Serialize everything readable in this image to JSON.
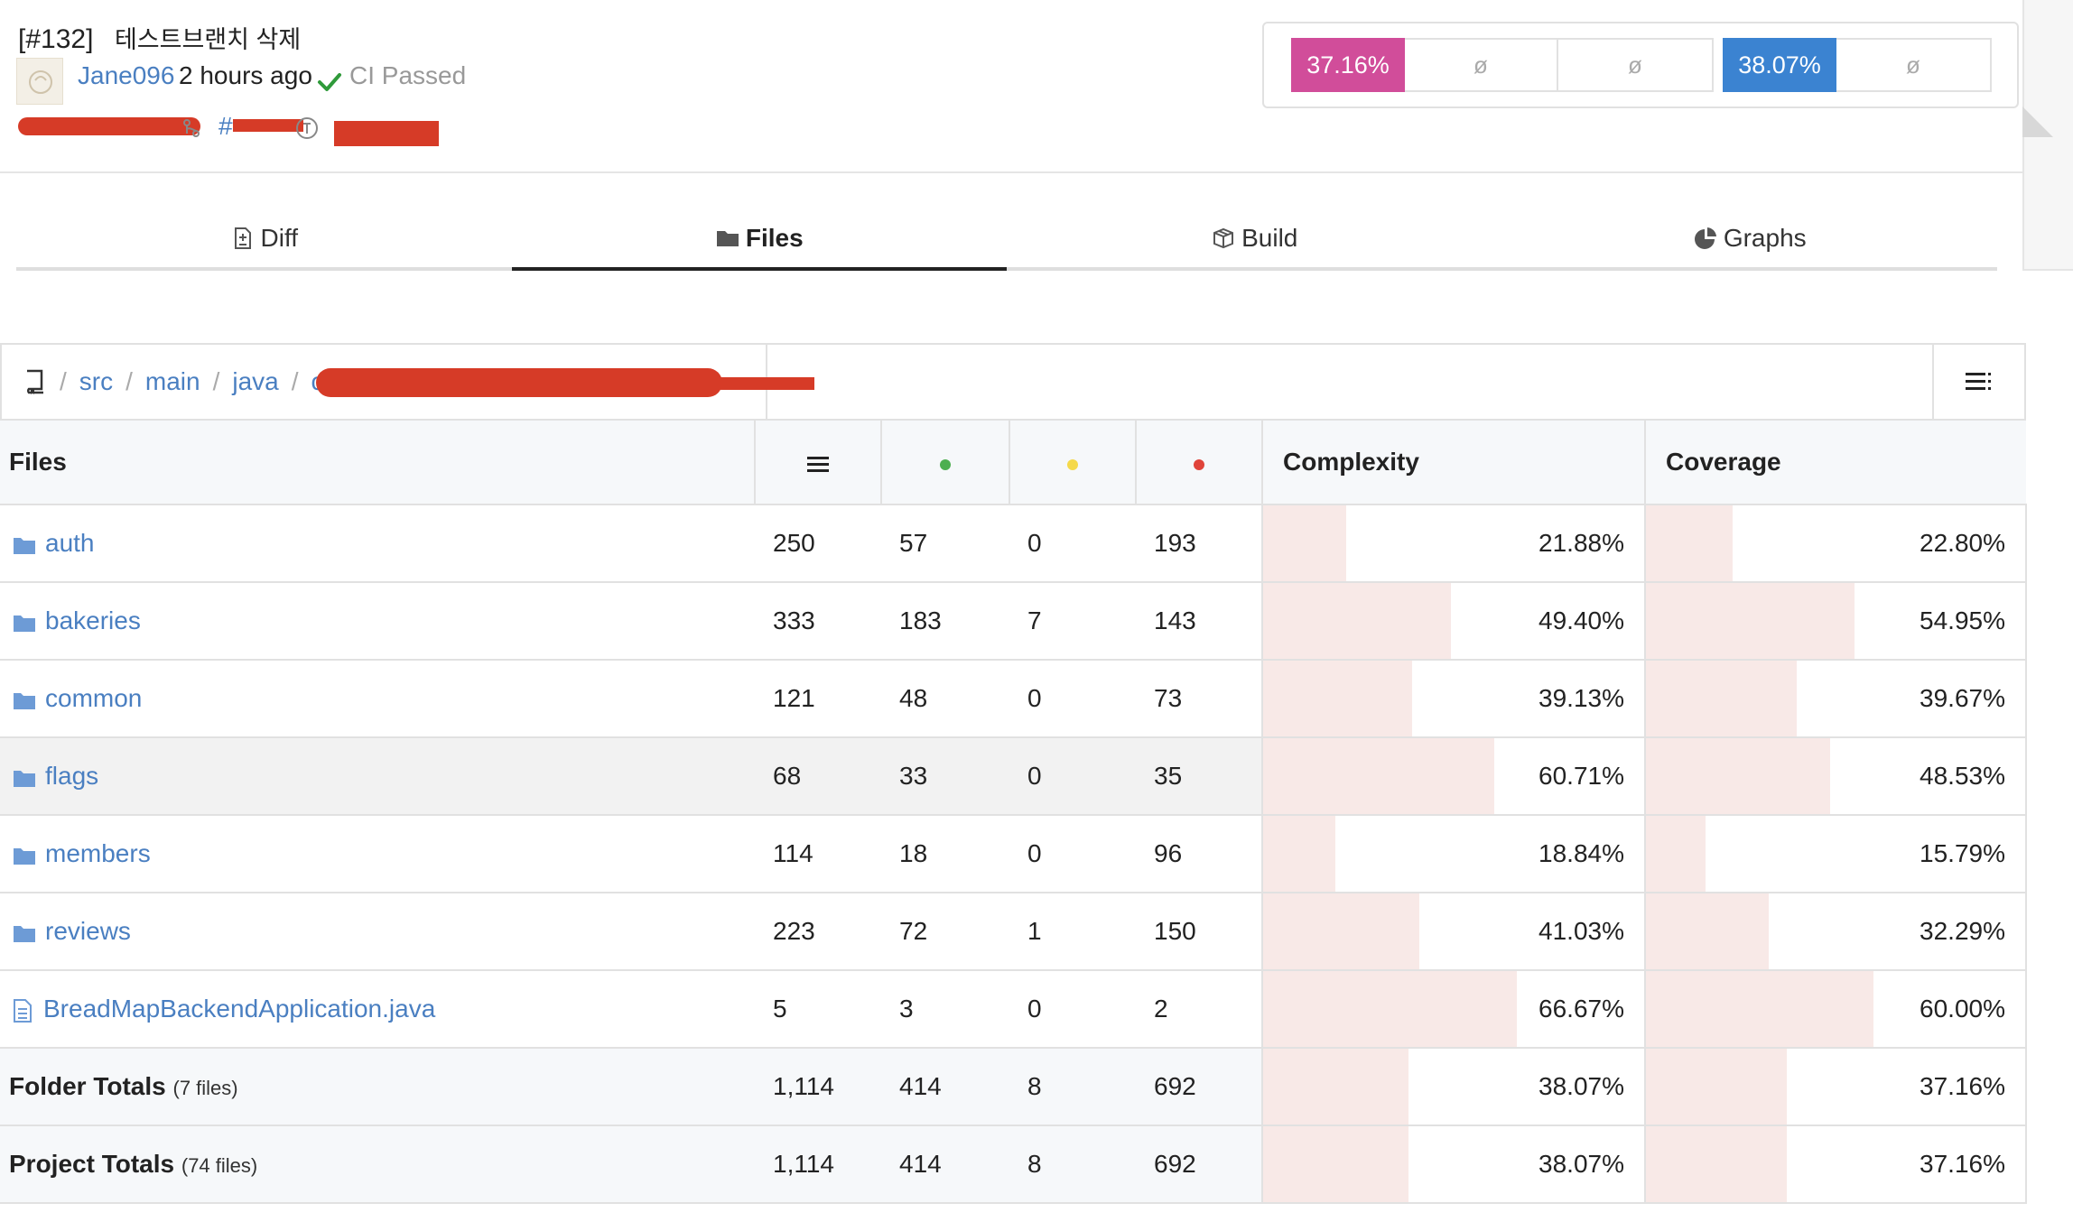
{
  "header": {
    "pr_number": "[#132]",
    "pr_title": "테스트브랜치 삭제",
    "author": "Jane096",
    "time": "2 hours ago",
    "ci_status": "CI Passed",
    "commit_ref": "#"
  },
  "badges": [
    {
      "label": "37.16%",
      "color": "#d14d9a"
    },
    {
      "label": "ø"
    },
    {
      "label": "ø"
    },
    {
      "label": "38.07%",
      "color": "#3b83d1"
    },
    {
      "label": "ø"
    }
  ],
  "tabs": [
    {
      "label": "Diff",
      "icon": "diff-file-icon",
      "active": false
    },
    {
      "label": "Files",
      "icon": "folder-icon",
      "active": true
    },
    {
      "label": "Build",
      "icon": "package-icon",
      "active": false
    },
    {
      "label": "Graphs",
      "icon": "pie-chart-icon",
      "active": false
    }
  ],
  "breadcrumb": [
    "src",
    "main",
    "java",
    "c"
  ],
  "table": {
    "columns": {
      "files": "Files",
      "lines_icon": "lines-icon",
      "hit_color": "#4caf50",
      "partial_color": "#f5d94a",
      "miss_color": "#e0443a",
      "complexity": "Complexity",
      "coverage": "Coverage"
    },
    "rows": [
      {
        "name": "auth",
        "type": "folder",
        "lines": "250",
        "hits": "57",
        "partials": "0",
        "misses": "193",
        "complexity": "21.88%",
        "complexity_value": 21.88,
        "coverage": "22.80%",
        "coverage_value": 22.8
      },
      {
        "name": "bakeries",
        "type": "folder",
        "lines": "333",
        "hits": "183",
        "partials": "7",
        "misses": "143",
        "complexity": "49.40%",
        "complexity_value": 49.4,
        "coverage": "54.95%",
        "coverage_value": 54.95
      },
      {
        "name": "common",
        "type": "folder",
        "lines": "121",
        "hits": "48",
        "partials": "0",
        "misses": "73",
        "complexity": "39.13%",
        "complexity_value": 39.13,
        "coverage": "39.67%",
        "coverage_value": 39.67
      },
      {
        "name": "flags",
        "type": "folder",
        "lines": "68",
        "hits": "33",
        "partials": "0",
        "misses": "35",
        "complexity": "60.71%",
        "complexity_value": 60.71,
        "coverage": "48.53%",
        "coverage_value": 48.53,
        "highlight": true
      },
      {
        "name": "members",
        "type": "folder",
        "lines": "114",
        "hits": "18",
        "partials": "0",
        "misses": "96",
        "complexity": "18.84%",
        "complexity_value": 18.84,
        "coverage": "15.79%",
        "coverage_value": 15.79
      },
      {
        "name": "reviews",
        "type": "folder",
        "lines": "223",
        "hits": "72",
        "partials": "1",
        "misses": "150",
        "complexity": "41.03%",
        "complexity_value": 41.03,
        "coverage": "32.29%",
        "coverage_value": 32.29
      },
      {
        "name": "BreadMapBackendApplication.java",
        "type": "file",
        "lines": "5",
        "hits": "3",
        "partials": "0",
        "misses": "2",
        "complexity": "66.67%",
        "complexity_value": 66.67,
        "coverage": "60.00%",
        "coverage_value": 60.0
      }
    ],
    "totals": [
      {
        "label": "Folder Totals",
        "sub": "(7 files)",
        "lines": "1,114",
        "hits": "414",
        "partials": "8",
        "misses": "692",
        "complexity": "38.07%",
        "complexity_value": 38.07,
        "coverage": "37.16%",
        "coverage_value": 37.16
      },
      {
        "label": "Project Totals",
        "sub": "(74 files)",
        "lines": "1,114",
        "hits": "414",
        "partials": "8",
        "misses": "692",
        "complexity": "38.07%",
        "complexity_value": 38.07,
        "coverage": "37.16%",
        "coverage_value": 37.16
      }
    ]
  }
}
